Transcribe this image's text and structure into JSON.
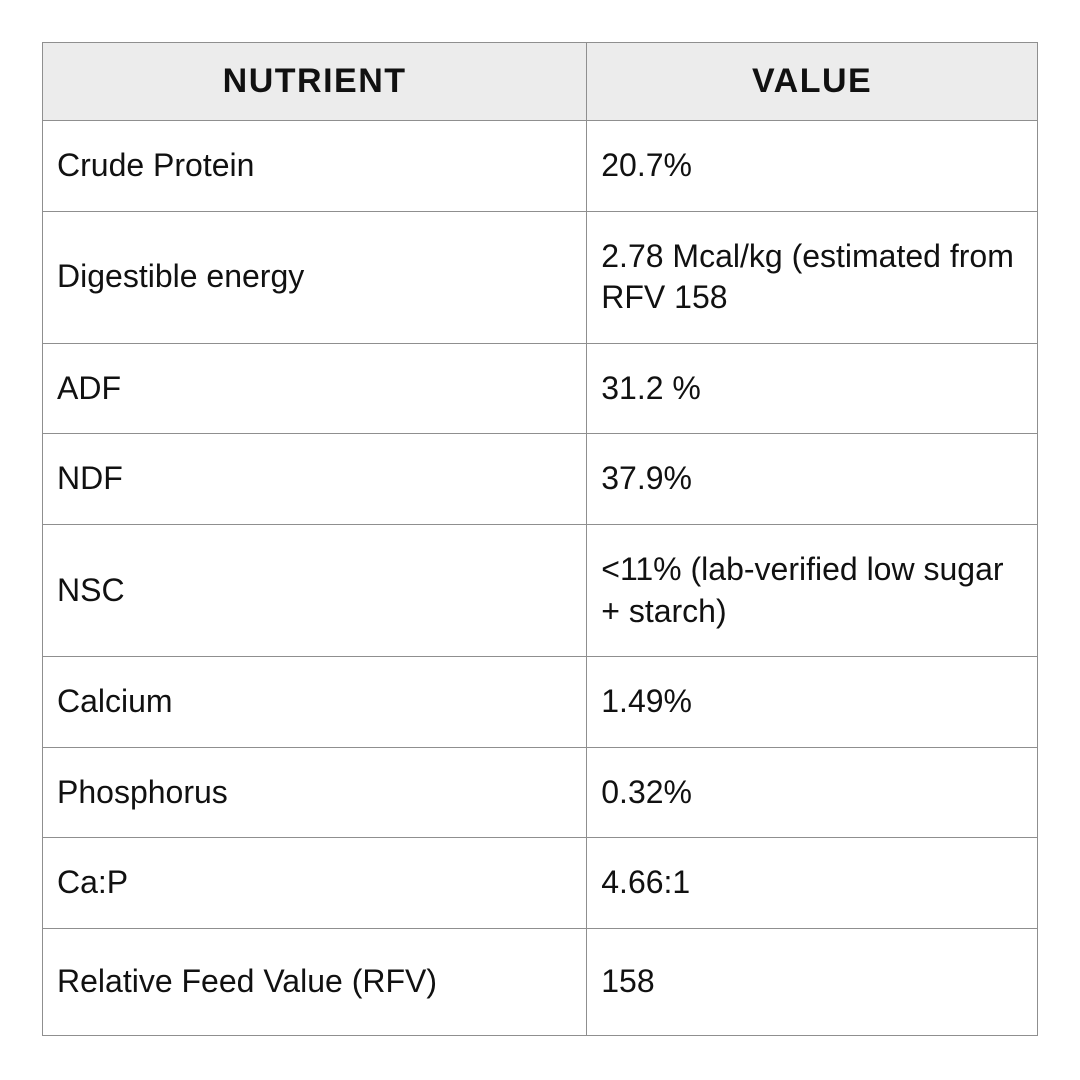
{
  "colors": {
    "header_background": "#ECECEC",
    "grid_border": "#8F8F8F",
    "text": "#111111",
    "page_background": "#FFFFFF"
  },
  "table": {
    "headers": {
      "nutrient": "NUTRIENT",
      "value": "VALUE"
    },
    "rows": [
      {
        "nutrient": "Crude Protein",
        "value": "20.7%"
      },
      {
        "nutrient": "Digestible energy",
        "value": "2.78 Mcal/kg (estimated from RFV 158"
      },
      {
        "nutrient": "ADF",
        "value": "31.2 %"
      },
      {
        "nutrient": "NDF",
        "value": "37.9%"
      },
      {
        "nutrient": "NSC",
        "value": "<11% (lab-verified low sugar + starch)"
      },
      {
        "nutrient": "Calcium",
        "value": "1.49%"
      },
      {
        "nutrient": "Phosphorus",
        "value": "0.32%"
      },
      {
        "nutrient": "Ca:P",
        "value": "4.66:1"
      },
      {
        "nutrient": "Relative Feed Value (RFV)",
        "value": "158"
      }
    ]
  }
}
